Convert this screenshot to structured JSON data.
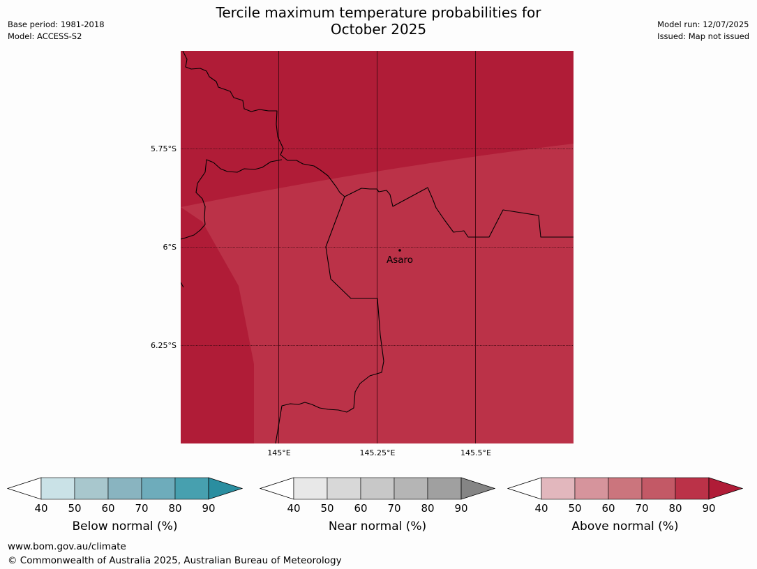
{
  "title_line1": "Tercile maximum temperature probabilities for",
  "title_line2": "October 2025",
  "base_period": "Base period: 1981-2018",
  "model": "Model: ACCESS-S2",
  "model_run": "Model run: 12/07/2025",
  "issued": "Issued: Map not issued",
  "map": {
    "lat_labels": [
      "5.75°S",
      "6°S",
      "6.25°S"
    ],
    "lon_labels": [
      "145°E",
      "145.25°E",
      "145.5°E"
    ],
    "place_name": "Asaro",
    "colors": {
      "high_prob": "#b01c37",
      "mid_prob": "#bb3248",
      "border": "#000000"
    }
  },
  "legends": [
    {
      "label": "Below normal (%)",
      "ticks": [
        "40",
        "50",
        "60",
        "70",
        "80",
        "90"
      ],
      "colors": [
        "#ffffff",
        "#cae2e7",
        "#a8c7cd",
        "#89b4c0",
        "#6eacbb",
        "#47a0af",
        "#2a8ea0"
      ]
    },
    {
      "label": "Near normal (%)",
      "ticks": [
        "40",
        "50",
        "60",
        "70",
        "80",
        "90"
      ],
      "colors": [
        "#ffffff",
        "#e8e8e8",
        "#d8d8d8",
        "#c8c8c8",
        "#b5b5b5",
        "#a0a0a0",
        "#858585"
      ]
    },
    {
      "label": "Above normal (%)",
      "ticks": [
        "40",
        "50",
        "60",
        "70",
        "80",
        "90"
      ],
      "colors": [
        "#ffffff",
        "#e2b7bd",
        "#d6949c",
        "#cb757d",
        "#c35966",
        "#bb3248",
        "#b01c37"
      ]
    }
  ],
  "footer_url": "www.bom.gov.au/climate",
  "footer_copyright": "© Commonwealth of Australia 2025, Australian Bureau of Meteorology"
}
